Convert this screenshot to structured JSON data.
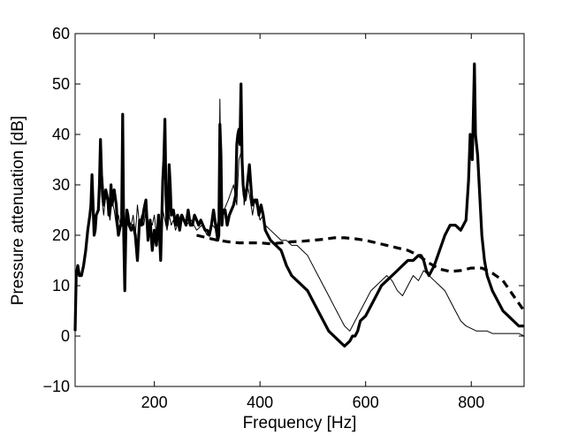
{
  "chart_data": {
    "type": "line",
    "title": "",
    "xlabel": "Frequency [Hz]",
    "ylabel": "Pressure attenuation [dB]",
    "xlim": [
      50,
      900
    ],
    "ylim": [
      -10,
      60
    ],
    "xticks": [
      200,
      400,
      600,
      800
    ],
    "yticks": [
      -10,
      0,
      10,
      20,
      30,
      40,
      50,
      60
    ],
    "grid": false,
    "legend": "none",
    "series": [
      {
        "style": "thick-solid",
        "color": "#000000",
        "x": [
          50,
          52,
          55,
          58,
          62,
          66,
          70,
          74,
          78,
          80,
          82,
          84,
          86,
          88,
          90,
          94,
          96,
          98,
          100,
          104,
          108,
          112,
          114,
          116,
          118,
          120,
          124,
          128,
          130,
          132,
          134,
          136,
          138,
          140,
          142,
          144,
          146,
          148,
          150,
          152,
          156,
          160,
          164,
          168,
          172,
          176,
          180,
          184,
          188,
          192,
          196,
          200,
          204,
          208,
          212,
          216,
          218,
          220,
          222,
          224,
          226,
          228,
          230,
          232,
          236,
          240,
          244,
          248,
          252,
          256,
          260,
          264,
          268,
          272,
          276,
          280,
          284,
          288,
          292,
          296,
          300,
          304,
          308,
          312,
          316,
          320,
          322,
          324,
          326,
          328,
          330,
          334,
          338,
          342,
          346,
          350,
          354,
          356,
          358,
          360,
          362,
          364,
          366,
          368,
          370,
          372,
          376,
          380,
          384,
          386,
          390,
          394,
          398,
          402,
          406,
          410,
          420,
          430,
          440,
          450,
          460,
          470,
          480,
          490,
          500,
          510,
          520,
          530,
          540,
          550,
          560,
          570,
          575,
          580,
          585,
          590,
          600,
          610,
          620,
          630,
          640,
          650,
          660,
          670,
          680,
          690,
          700,
          705,
          710,
          715,
          720,
          730,
          740,
          750,
          760,
          770,
          780,
          790,
          795,
          798,
          800,
          802,
          804,
          806,
          808,
          810,
          812,
          815,
          820,
          825,
          830,
          840,
          850,
          860,
          870,
          880,
          890,
          900
        ],
        "y": [
          1,
          12,
          14,
          12,
          12,
          14,
          17,
          21,
          24,
          26,
          32,
          26,
          20,
          21,
          24,
          25,
          30,
          39,
          32,
          26,
          29,
          27,
          24,
          25,
          30,
          26,
          29,
          26,
          22,
          20,
          21,
          22,
          22,
          44,
          20,
          9,
          21,
          25,
          24,
          22,
          21,
          22,
          20,
          15,
          23,
          22,
          25,
          27,
          19,
          23,
          17,
          21,
          18,
          24,
          15,
          31,
          35,
          43,
          28,
          22,
          24,
          34,
          30,
          24,
          25,
          22,
          24,
          21,
          24,
          23,
          22,
          25,
          22,
          22,
          24,
          23,
          22,
          23,
          22,
          21,
          21,
          20,
          22,
          25,
          22,
          19,
          20,
          42,
          36,
          22,
          25,
          25,
          22,
          24,
          25,
          26,
          28,
          38,
          40,
          41,
          38,
          50,
          35,
          30,
          28,
          27,
          30,
          34,
          28,
          26,
          27,
          27,
          24,
          26,
          24,
          21,
          19,
          18,
          17,
          14,
          12,
          11,
          10,
          9,
          7,
          5,
          3,
          1,
          0,
          -1,
          -2,
          -1,
          0,
          0,
          1,
          3,
          4,
          6,
          8,
          10,
          11,
          12,
          13,
          14,
          15,
          15,
          16,
          16,
          15,
          13,
          12,
          14,
          17,
          20,
          22,
          22,
          21,
          23,
          31,
          40,
          38,
          35,
          44,
          54,
          40,
          38,
          36,
          30,
          20,
          15,
          12,
          9,
          7,
          5,
          4,
          3,
          2,
          2
        ]
      },
      {
        "style": "thin-solid",
        "color": "#000000",
        "x": [
          50,
          52,
          55,
          58,
          62,
          66,
          70,
          74,
          78,
          80,
          82,
          86,
          90,
          96,
          98,
          100,
          104,
          108,
          112,
          116,
          120,
          124,
          128,
          132,
          136,
          140,
          144,
          148,
          152,
          156,
          160,
          164,
          168,
          172,
          176,
          180,
          184,
          188,
          192,
          196,
          200,
          204,
          208,
          212,
          216,
          220,
          224,
          228,
          232,
          236,
          240,
          250,
          260,
          270,
          280,
          290,
          300,
          310,
          318,
          322,
          324,
          326,
          328,
          332,
          340,
          350,
          356,
          360,
          366,
          370,
          376,
          380,
          386,
          390,
          396,
          400,
          406,
          410,
          420,
          430,
          440,
          450,
          460,
          470,
          480,
          490,
          500,
          510,
          520,
          530,
          540,
          550,
          560,
          570,
          575,
          580,
          590,
          600,
          610,
          620,
          630,
          640,
          650,
          660,
          670,
          680,
          690,
          700,
          710,
          720,
          730,
          740,
          750,
          760,
          770,
          780,
          790,
          800,
          810,
          820,
          830,
          840,
          850,
          860,
          870,
          880,
          890,
          900
        ],
        "y": [
          1,
          12,
          14,
          12,
          12,
          14,
          17,
          21,
          24,
          25,
          27,
          22,
          24,
          26,
          33,
          28,
          24,
          28,
          26,
          23,
          27,
          25,
          22,
          24,
          22,
          26,
          21,
          25,
          23,
          22,
          24,
          20,
          26,
          22,
          24,
          22,
          25,
          21,
          23,
          22,
          24,
          20,
          22,
          19,
          25,
          23,
          21,
          24,
          22,
          23,
          21,
          24,
          22,
          23,
          21,
          22,
          20,
          22,
          21,
          24,
          47,
          30,
          24,
          25,
          27,
          30,
          26,
          35,
          37,
          26,
          30,
          28,
          24,
          27,
          25,
          23,
          24,
          22,
          21,
          20,
          19,
          19,
          18,
          18,
          17,
          16,
          14,
          12,
          10,
          8,
          6,
          4,
          2,
          1,
          2,
          3,
          5,
          7,
          9,
          10,
          11,
          12,
          11,
          9,
          8,
          10,
          12,
          11,
          13,
          12,
          11,
          10,
          9,
          7,
          5,
          3,
          2,
          1.5,
          1,
          1,
          1,
          0.5,
          0.5,
          0.5,
          0.5,
          0.5,
          0.5,
          0
        ]
      },
      {
        "style": "thick-dashed",
        "color": "#000000",
        "x": [
          280,
          300,
          320,
          340,
          360,
          380,
          400,
          420,
          440,
          460,
          480,
          500,
          520,
          540,
          560,
          580,
          600,
          620,
          640,
          660,
          680,
          700,
          720,
          740,
          760,
          780,
          800,
          820,
          840,
          860,
          880,
          900
        ],
        "y": [
          20,
          19.5,
          19,
          18.7,
          18.5,
          18.5,
          18.5,
          18.3,
          18.5,
          18.7,
          18.8,
          19,
          19.2,
          19.5,
          19.5,
          19.3,
          19,
          18.5,
          18,
          17.5,
          17,
          16,
          14.5,
          13.3,
          12.8,
          13,
          13.5,
          13.5,
          12.5,
          11,
          8,
          5
        ]
      }
    ]
  }
}
